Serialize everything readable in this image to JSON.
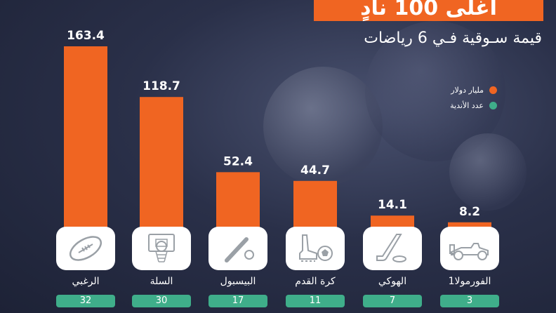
{
  "header": {
    "title": "أغلى 100 نادٍ",
    "subtitle": "قيمة سـوقية فـي 6 رياضات"
  },
  "legend": [
    {
      "label": "مليار دولار",
      "color": "#f06522"
    },
    {
      "label": "عدد الأندية",
      "color": "#3fae8a"
    }
  ],
  "icons": [
    "rugby-ball-icon",
    "basketball-hoop-icon",
    "baseball-bat-icon",
    "soccer-cleat-icon",
    "hockey-stick-icon",
    "formula1-car-icon"
  ],
  "chart_data": {
    "type": "bar",
    "categories": [
      "الرغبي",
      "السلة",
      "البيسبول",
      "كرة القدم",
      "الهوكي",
      "الفورمولا1"
    ],
    "series": [
      {
        "name": "مليار دولار",
        "values": [
          163.4,
          118.7,
          52.4,
          44.7,
          14.1,
          8.2
        ]
      },
      {
        "name": "عدد الأندية",
        "values": [
          32,
          30,
          17,
          11,
          7,
          3
        ]
      }
    ],
    "data_labels": [
      "163.4",
      "118.7",
      "52.4",
      "44.7",
      "14.1",
      "8.2"
    ],
    "count_labels": [
      "32",
      "30",
      "17",
      "11",
      "7",
      "3"
    ],
    "colors": {
      "bars": "#f06522",
      "counts": "#3fae8a"
    }
  }
}
